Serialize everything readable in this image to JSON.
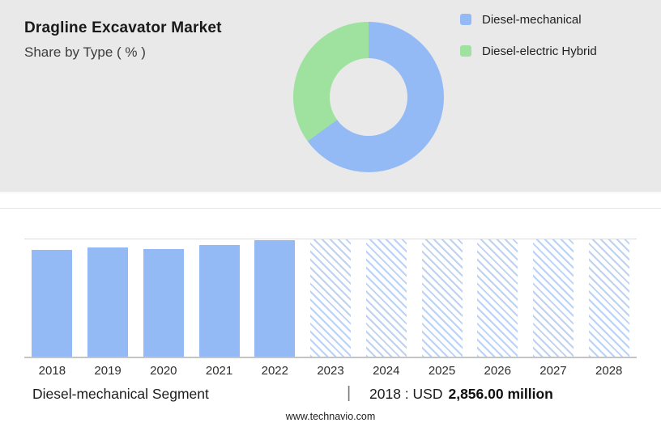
{
  "colors": {
    "panel_bg": "#e9e9e9",
    "blue": "#93baf5",
    "green": "#9fe2a0",
    "hatch_line": "#bcd2f4",
    "hatch_bg": "#ffffff",
    "gridline": "#dcdcdc",
    "axis": "#c4c4c4"
  },
  "header": {
    "title": "Dragline Excavator Market",
    "subtitle": "Share by Type ( % )"
  },
  "chart_data": [
    {
      "type": "pie",
      "donut": true,
      "title": "Share by Type ( % )",
      "labels": [
        "Diesel-mechanical",
        "Diesel-electric Hybrid"
      ],
      "values": [
        65,
        35
      ],
      "colors": [
        "#93baf5",
        "#9fe2a0"
      ],
      "legend_position": "top-right",
      "data_labels_shown": false
    },
    {
      "type": "bar",
      "categories": [
        "2018",
        "2019",
        "2020",
        "2021",
        "2022",
        "2023",
        "2024",
        "2025",
        "2026",
        "2027",
        "2028"
      ],
      "values_pct_height": [
        91,
        93,
        92,
        95,
        99,
        100,
        100,
        100,
        100,
        100,
        100
      ],
      "forecast": [
        false,
        false,
        false,
        false,
        false,
        true,
        true,
        true,
        true,
        true,
        true
      ],
      "labeled_point": {
        "category": "2018",
        "value": 2856.0,
        "unit": "USD million",
        "label": "2018 : USD 2,856.00 million"
      },
      "bar_color": "#93baf5",
      "forecast_style": "diagonal-hatch",
      "ylabel": "",
      "xlabel": "",
      "grid": "top gridline and baseline only",
      "y_axis_labels_shown": false
    }
  ],
  "caption": {
    "segment_label": "Diesel-mechanical Segment",
    "separator": "|",
    "value_prefix": "2018 : USD",
    "value_bold": "2,856.00 million"
  },
  "footer": {
    "site": "www.technavio.com"
  }
}
